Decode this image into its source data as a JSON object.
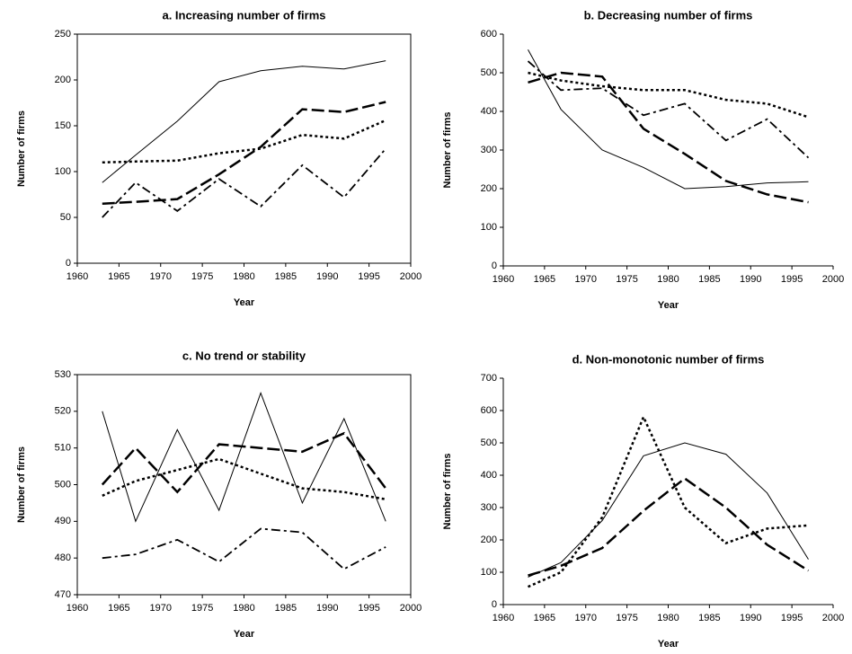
{
  "chart_data": [
    {
      "type": "line",
      "title": "a. Increasing number of firms",
      "xlabel": "Year",
      "ylabel": "Number of firms",
      "frame": true,
      "x": [
        1963,
        1967,
        1972,
        1977,
        1982,
        1987,
        1992,
        1997
      ],
      "xlim": [
        1960,
        2000
      ],
      "xticks": [
        1960,
        1965,
        1970,
        1975,
        1980,
        1985,
        1990,
        1995,
        2000
      ],
      "ylim": [
        0,
        250
      ],
      "yticks": [
        0,
        50,
        100,
        150,
        200,
        250
      ],
      "series": [
        {
          "color": "#000000",
          "dash": "solid",
          "values": [
            88,
            118,
            155,
            198,
            210,
            215,
            212,
            221
          ]
        },
        {
          "color": "#000000",
          "dash": "dashed",
          "values": [
            65,
            67,
            70,
            97,
            127,
            168,
            165,
            176
          ]
        },
        {
          "color": "#000000",
          "dash": "dotted",
          "values": [
            110,
            111,
            112,
            120,
            125,
            140,
            136,
            156
          ]
        },
        {
          "color": "#000000",
          "dash": "dashdot",
          "values": [
            50,
            88,
            57,
            92,
            62,
            107,
            72,
            125
          ]
        }
      ]
    },
    {
      "type": "line",
      "title": "b. Decreasing number of firms",
      "xlabel": "Year",
      "ylabel": "Number of firms",
      "frame": false,
      "x": [
        1963,
        1967,
        1972,
        1977,
        1982,
        1987,
        1992,
        1997
      ],
      "xlim": [
        1960,
        2000
      ],
      "xticks": [
        1960,
        1965,
        1970,
        1975,
        1980,
        1985,
        1990,
        1995,
        2000
      ],
      "ylim": [
        0,
        600
      ],
      "yticks": [
        0,
        100,
        200,
        300,
        400,
        500,
        600
      ],
      "series": [
        {
          "color": "#000000",
          "dash": "solid",
          "values": [
            560,
            405,
            300,
            255,
            200,
            205,
            215,
            218
          ]
        },
        {
          "color": "#000000",
          "dash": "dashed",
          "values": [
            475,
            500,
            490,
            355,
            290,
            220,
            185,
            165
          ]
        },
        {
          "color": "#000000",
          "dash": "dotted",
          "values": [
            500,
            480,
            465,
            455,
            455,
            430,
            420,
            385
          ]
        },
        {
          "color": "#000000",
          "dash": "dashdot",
          "values": [
            530,
            455,
            460,
            390,
            420,
            325,
            380,
            280
          ]
        }
      ]
    },
    {
      "type": "line",
      "title": "c. No trend or stability",
      "xlabel": "Year",
      "ylabel": "Number of firms",
      "frame": true,
      "x": [
        1963,
        1967,
        1972,
        1977,
        1982,
        1987,
        1992,
        1997
      ],
      "xlim": [
        1960,
        2000
      ],
      "xticks": [
        1960,
        1965,
        1970,
        1975,
        1980,
        1985,
        1990,
        1995,
        2000
      ],
      "ylim": [
        470,
        530
      ],
      "yticks": [
        470,
        480,
        490,
        500,
        510,
        520,
        530
      ],
      "series": [
        {
          "color": "#000000",
          "dash": "solid",
          "values": [
            520,
            490,
            515,
            493,
            525,
            495,
            518,
            490
          ]
        },
        {
          "color": "#000000",
          "dash": "dashed",
          "values": [
            500,
            510,
            498,
            511,
            510,
            509,
            514,
            499
          ]
        },
        {
          "color": "#000000",
          "dash": "dotted",
          "values": [
            497,
            501,
            504,
            507,
            503,
            499,
            498,
            496
          ]
        },
        {
          "color": "#000000",
          "dash": "dashdot",
          "values": [
            480,
            481,
            485,
            479,
            488,
            487,
            477,
            483
          ]
        }
      ]
    },
    {
      "type": "line",
      "title": "d. Non-monotonic number of firms",
      "xlabel": "Year",
      "ylabel": "Number of firms",
      "frame": false,
      "x": [
        1963,
        1967,
        1972,
        1977,
        1982,
        1987,
        1992,
        1997
      ],
      "xlim": [
        1960,
        2000
      ],
      "xticks": [
        1960,
        1965,
        1970,
        1975,
        1980,
        1985,
        1990,
        1995,
        2000
      ],
      "ylim": [
        0,
        700
      ],
      "yticks": [
        0,
        100,
        200,
        300,
        400,
        500,
        600,
        700
      ],
      "series": [
        {
          "color": "#000000",
          "dash": "solid",
          "values": [
            85,
            130,
            260,
            460,
            500,
            465,
            345,
            140
          ]
        },
        {
          "color": "#000000",
          "dash": "dashed",
          "values": [
            90,
            120,
            175,
            290,
            390,
            300,
            185,
            105
          ]
        },
        {
          "color": "#000000",
          "dash": "dotted",
          "values": [
            55,
            100,
            270,
            580,
            300,
            190,
            235,
            245
          ]
        }
      ]
    }
  ]
}
